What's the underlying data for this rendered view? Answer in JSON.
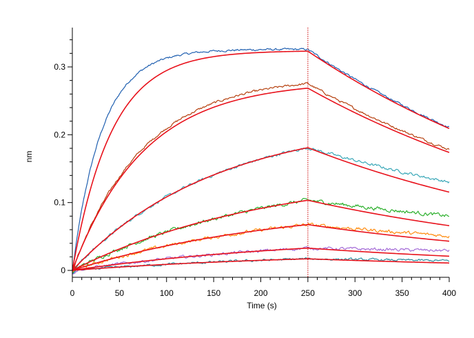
{
  "chart_data": {
    "type": "line",
    "title": "",
    "xlabel": "Time (s)",
    "ylabel": "nm",
    "xlim": [
      0,
      400
    ],
    "ylim": [
      0,
      0.35
    ],
    "x_ticks": [
      0,
      50,
      100,
      150,
      200,
      250,
      300,
      350,
      400
    ],
    "x_tick_labels": [
      "0",
      "50",
      "100",
      "150",
      "200",
      "250",
      "300",
      "350",
      "400"
    ],
    "y_ticks": [
      0,
      0.1,
      0.2,
      0.3
    ],
    "y_tick_labels": [
      "0",
      "0.1",
      "0.2",
      "0.3"
    ],
    "grid": false,
    "legend": false,
    "vertical_marker_x": 250,
    "vertical_marker_color": "#cc0000",
    "fit_color": "#e8101a",
    "association_end": 250,
    "series": [
      {
        "kind": "measured",
        "color": "#1f5fb0",
        "plateau": 0.326,
        "kon": 0.032,
        "koff": 0.0029,
        "noise": 0.0011
      },
      {
        "kind": "fit",
        "color": "#e8101a",
        "plateau": 0.324,
        "kon": 0.024,
        "koff": 0.0029,
        "noise": 0
      },
      {
        "kind": "measured",
        "color": "#b5400e",
        "plateau": 0.286,
        "kon": 0.0132,
        "koff": 0.0029,
        "noise": 0.0012
      },
      {
        "kind": "fit",
        "color": "#e8101a",
        "plateau": 0.279,
        "kon": 0.0132,
        "koff": 0.0029,
        "noise": 0
      },
      {
        "kind": "measured",
        "color": "#3aa8b8",
        "plateau": 0.224,
        "kon": 0.0066,
        "koff": 0.0022,
        "noise": 0.0015
      },
      {
        "kind": "fit",
        "color": "#e8101a",
        "plateau": 0.224,
        "kon": 0.0066,
        "koff": 0.003,
        "noise": 0
      },
      {
        "kind": "measured",
        "color": "#2db02d",
        "plateau": 0.148,
        "kon": 0.0048,
        "koff": 0.0017,
        "noise": 0.002
      },
      {
        "kind": "fit",
        "color": "#e8101a",
        "plateau": 0.148,
        "kon": 0.0048,
        "koff": 0.003,
        "noise": 0
      },
      {
        "kind": "measured",
        "color": "#ff8c10",
        "plateau": 0.1,
        "kon": 0.0045,
        "koff": 0.0019,
        "noise": 0.0018
      },
      {
        "kind": "fit",
        "color": "#e8101a",
        "plateau": 0.1,
        "kon": 0.0045,
        "koff": 0.003,
        "noise": 0
      },
      {
        "kind": "measured",
        "color": "#a56cd8",
        "plateau": 0.052,
        "kon": 0.004,
        "koff": 0.0008,
        "noise": 0.0016
      },
      {
        "kind": "fit",
        "color": "#e8101a",
        "plateau": 0.052,
        "kon": 0.004,
        "koff": 0.003,
        "noise": 0
      },
      {
        "kind": "measured",
        "color": "#2c8fa0",
        "plateau": 0.027,
        "kon": 0.004,
        "koff": 0.0012,
        "noise": 0.0012
      },
      {
        "kind": "fit",
        "color": "#e8101a",
        "plateau": 0.027,
        "kon": 0.004,
        "koff": 0.003,
        "noise": 0
      }
    ]
  }
}
